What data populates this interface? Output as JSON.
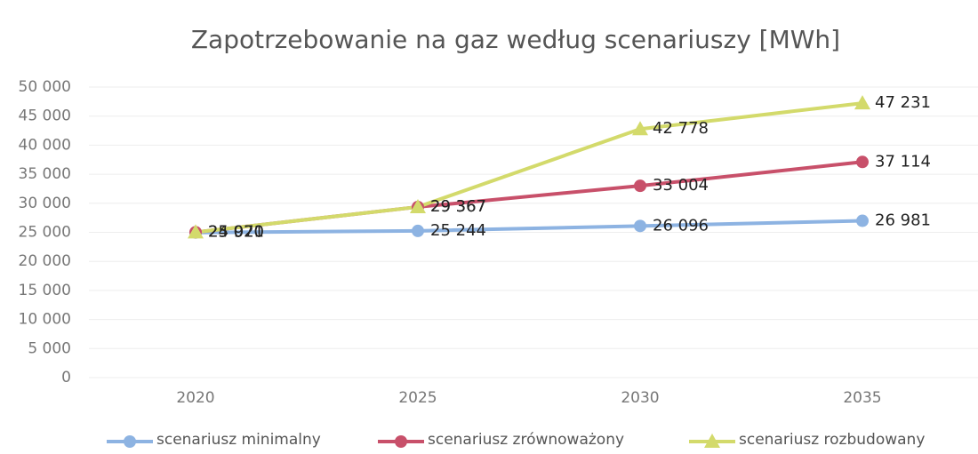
{
  "chart_data": {
    "type": "line",
    "title": "Zapotrzebowanie na gaz według scenariuszy [MWh]",
    "categories": [
      "2020",
      "2025",
      "2030",
      "2035"
    ],
    "series": [
      {
        "name": "scenariusz minimalny",
        "color": "#8db3e2",
        "marker": "circle",
        "values": [
          24971,
          25244,
          26096,
          26981
        ],
        "value_labels": [
          "24 971",
          "25 244",
          "26 096",
          "26 981"
        ]
      },
      {
        "name": "scenariusz zrównoważony",
        "color": "#c8506a",
        "marker": "circle",
        "values": [
          25020,
          29367,
          33004,
          37114
        ],
        "value_labels": [
          "25 020",
          "29 367",
          "33 004",
          "37 114"
        ]
      },
      {
        "name": "scenariusz rozbudowany",
        "color": "#d3da6b",
        "marker": "triangle",
        "values": [
          25020,
          29367,
          42778,
          47231
        ],
        "value_labels": [
          "25 020",
          "29 367",
          "42 778",
          "47 231"
        ]
      }
    ],
    "ylim": [
      0,
      50000
    ],
    "yticks": [
      0,
      {
        "value": 5000,
        "label": "5 000"
      },
      {
        "value": 10000,
        "label": "10 000"
      },
      {
        "value": 15000,
        "label": "15 000"
      },
      {
        "value": 20000,
        "label": "20 000"
      },
      {
        "value": 25000,
        "label": "25 000"
      },
      {
        "value": 30000,
        "label": "30 000"
      },
      {
        "value": 35000,
        "label": "35 000"
      },
      {
        "value": 40000,
        "label": "40 000"
      },
      {
        "value": 45000,
        "label": "45 000"
      },
      {
        "value": 50000,
        "label": "50 000"
      }
    ],
    "grid": true,
    "legend": "bottom"
  }
}
